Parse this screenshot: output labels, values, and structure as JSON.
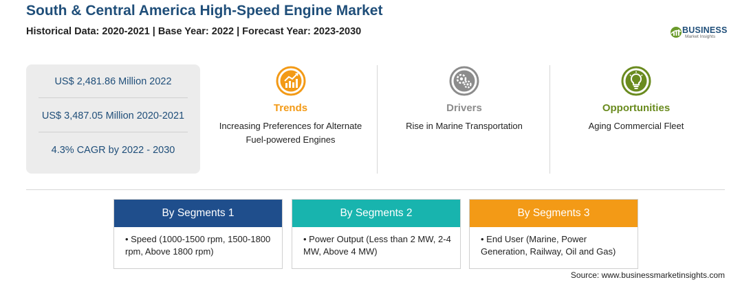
{
  "header": {
    "title": "South & Central America High-Speed Engine Market",
    "subtitle": "Historical Data: 2020-2021 | Base Year: 2022 | Forecast Year: 2023-2030"
  },
  "logo": {
    "name": "BUSINESS",
    "tagline": "Market Insights"
  },
  "stats": [
    "US$ 2,481.86 Million 2022",
    "US$ 3,487.05 Million 2020-2021",
    "4.3% CAGR by 2022 - 2030"
  ],
  "features": {
    "trends": {
      "title": "Trends",
      "description": "Increasing Preferences for Alternate Fuel-powered Engines",
      "color": "#f39a16",
      "icon": "trend-chart-icon"
    },
    "drivers": {
      "title": "Drivers",
      "description": "Rise in Marine Transportation",
      "color": "#8c8c8c",
      "icon": "gears-icon"
    },
    "opportunities": {
      "title": "Opportunities",
      "description": "Aging Commercial Fleet",
      "color": "#6a8b1f",
      "icon": "lightbulb-icon"
    }
  },
  "segments": [
    {
      "title": "By Segments 1",
      "item": "Speed (1000-1500 rpm, 1500-1800 rpm, Above 1800 rpm)",
      "color": "#1f4e8c"
    },
    {
      "title": "By Segments 2",
      "item": "Power Output (Less than 2 MW, 2-4 MW, Above 4 MW)",
      "color": "#18b4ae"
    },
    {
      "title": "By Segments 3",
      "item": "End User (Marine, Power Generation, Railway, Oil and Gas)",
      "color": "#f39a16"
    }
  ],
  "source": "Source: www.businessmarketinsights.com"
}
